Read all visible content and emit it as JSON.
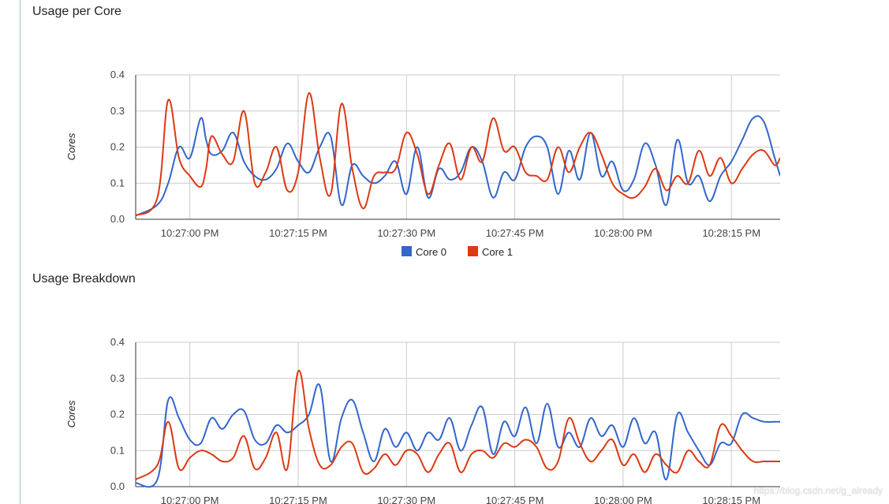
{
  "colors": {
    "core0": "#3366cc",
    "core1": "#dc3912",
    "grid": "#cccccc",
    "axis": "#333333"
  },
  "watermark": "https://blog.csdn.net/g_already",
  "chart_data": [
    {
      "type": "line",
      "title": "Usage per Core",
      "ylabel": "Cores",
      "ylim": [
        0,
        0.4
      ],
      "yticks": [
        "0.0",
        "0.1",
        "0.2",
        "0.3",
        "0.4"
      ],
      "xlim_seconds": [
        -10,
        109
      ],
      "xticks": [
        {
          "t": 0,
          "label": "10:27:00 PM"
        },
        {
          "t": 20,
          "label": "10:27:15 PM"
        },
        {
          "t": 40,
          "label": "10:27:30 PM"
        },
        {
          "t": 60,
          "label": "10:27:45 PM"
        },
        {
          "t": 80,
          "label": "10:28:00 PM"
        },
        {
          "t": 100,
          "label": "10:28:15 PM"
        }
      ],
      "legend": "bottom",
      "series": [
        {
          "name": "Core 0",
          "color": "#3366cc",
          "x": [
            -10,
            -6,
            -4,
            -2,
            0,
            2,
            3,
            4,
            6,
            8,
            10,
            12,
            14,
            16,
            18,
            20,
            22,
            24,
            26,
            28,
            30,
            32,
            34,
            36,
            38,
            40,
            42,
            44,
            46,
            48,
            50,
            52,
            54,
            56,
            58,
            60,
            62,
            64,
            66,
            68,
            70,
            72,
            74,
            76,
            78,
            80,
            82,
            84,
            86,
            88,
            90,
            92,
            94,
            96,
            98,
            100,
            102,
            104,
            106,
            108,
            109
          ],
          "y": [
            0.01,
            0.04,
            0.1,
            0.2,
            0.17,
            0.28,
            0.22,
            0.18,
            0.19,
            0.24,
            0.16,
            0.12,
            0.11,
            0.14,
            0.21,
            0.16,
            0.13,
            0.2,
            0.23,
            0.04,
            0.15,
            0.12,
            0.1,
            0.12,
            0.16,
            0.07,
            0.2,
            0.06,
            0.14,
            0.11,
            0.13,
            0.2,
            0.16,
            0.06,
            0.13,
            0.11,
            0.2,
            0.23,
            0.2,
            0.07,
            0.19,
            0.11,
            0.24,
            0.12,
            0.16,
            0.08,
            0.11,
            0.21,
            0.15,
            0.04,
            0.22,
            0.1,
            0.12,
            0.05,
            0.12,
            0.16,
            0.22,
            0.28,
            0.27,
            0.17,
            0.12
          ]
        },
        {
          "name": "Core 1",
          "color": "#dc3912",
          "x": [
            -10,
            -6,
            -4,
            -2,
            0,
            2,
            3,
            4,
            6,
            8,
            10,
            12,
            14,
            16,
            18,
            20,
            22,
            24,
            26,
            28,
            30,
            32,
            34,
            36,
            38,
            40,
            42,
            44,
            46,
            48,
            50,
            52,
            54,
            56,
            58,
            60,
            62,
            64,
            66,
            68,
            70,
            72,
            74,
            76,
            78,
            80,
            82,
            84,
            86,
            88,
            90,
            92,
            94,
            96,
            98,
            100,
            102,
            104,
            106,
            108,
            109
          ],
          "y": [
            0.01,
            0.06,
            0.33,
            0.17,
            0.12,
            0.09,
            0.14,
            0.23,
            0.18,
            0.16,
            0.3,
            0.1,
            0.13,
            0.2,
            0.08,
            0.13,
            0.35,
            0.17,
            0.07,
            0.32,
            0.14,
            0.03,
            0.12,
            0.13,
            0.14,
            0.24,
            0.18,
            0.07,
            0.15,
            0.21,
            0.11,
            0.2,
            0.16,
            0.28,
            0.19,
            0.2,
            0.13,
            0.12,
            0.11,
            0.2,
            0.13,
            0.2,
            0.24,
            0.18,
            0.1,
            0.07,
            0.06,
            0.09,
            0.14,
            0.08,
            0.12,
            0.1,
            0.19,
            0.12,
            0.17,
            0.1,
            0.14,
            0.18,
            0.19,
            0.15,
            0.17
          ]
        }
      ]
    },
    {
      "type": "line",
      "title": "Usage Breakdown",
      "ylabel": "Cores",
      "ylim": [
        0,
        0.4
      ],
      "yticks": [
        "0.0",
        "0.1",
        "0.2",
        "0.3",
        "0.4"
      ],
      "xlim_seconds": [
        -10,
        109
      ],
      "xticks": [
        {
          "t": 0,
          "label": "10:27:00 PM"
        },
        {
          "t": 20,
          "label": "10:27:15 PM"
        },
        {
          "t": 40,
          "label": "10:27:30 PM"
        },
        {
          "t": 60,
          "label": "10:27:45 PM"
        },
        {
          "t": 80,
          "label": "10:28:00 PM"
        },
        {
          "t": 100,
          "label": "10:28:15 PM"
        }
      ],
      "legend": "none",
      "series": [
        {
          "color": "#3366cc",
          "x": [
            -10,
            -6,
            -4,
            -2,
            0,
            2,
            4,
            6,
            8,
            10,
            12,
            14,
            16,
            18,
            20,
            22,
            24,
            26,
            28,
            30,
            32,
            34,
            36,
            38,
            40,
            42,
            44,
            46,
            48,
            50,
            52,
            54,
            56,
            58,
            60,
            62,
            64,
            66,
            68,
            70,
            72,
            74,
            76,
            78,
            80,
            82,
            84,
            86,
            88,
            90,
            92,
            94,
            96,
            98,
            100,
            102,
            104,
            106,
            108,
            109
          ],
          "y": [
            0.01,
            0.02,
            0.24,
            0.19,
            0.13,
            0.12,
            0.19,
            0.16,
            0.2,
            0.21,
            0.13,
            0.12,
            0.17,
            0.15,
            0.17,
            0.2,
            0.28,
            0.07,
            0.19,
            0.24,
            0.15,
            0.07,
            0.16,
            0.11,
            0.15,
            0.1,
            0.15,
            0.13,
            0.19,
            0.1,
            0.17,
            0.22,
            0.09,
            0.18,
            0.14,
            0.22,
            0.12,
            0.23,
            0.11,
            0.15,
            0.11,
            0.19,
            0.14,
            0.17,
            0.11,
            0.19,
            0.12,
            0.15,
            0.02,
            0.2,
            0.15,
            0.1,
            0.06,
            0.12,
            0.12,
            0.2,
            0.19,
            0.18,
            0.18,
            0.18
          ]
        },
        {
          "color": "#dc3912",
          "x": [
            -10,
            -6,
            -4,
            -2,
            0,
            2,
            4,
            6,
            8,
            10,
            12,
            14,
            16,
            18,
            20,
            22,
            24,
            26,
            28,
            30,
            32,
            34,
            36,
            38,
            40,
            42,
            44,
            46,
            48,
            50,
            52,
            54,
            56,
            58,
            60,
            62,
            64,
            66,
            68,
            70,
            72,
            74,
            76,
            78,
            80,
            82,
            84,
            86,
            88,
            90,
            92,
            94,
            96,
            98,
            100,
            102,
            104,
            106,
            108,
            109
          ],
          "y": [
            0.02,
            0.06,
            0.18,
            0.05,
            0.08,
            0.1,
            0.09,
            0.07,
            0.08,
            0.14,
            0.05,
            0.08,
            0.15,
            0.05,
            0.32,
            0.16,
            0.06,
            0.06,
            0.11,
            0.12,
            0.04,
            0.05,
            0.09,
            0.06,
            0.1,
            0.09,
            0.04,
            0.09,
            0.12,
            0.04,
            0.09,
            0.1,
            0.08,
            0.12,
            0.11,
            0.13,
            0.11,
            0.05,
            0.07,
            0.19,
            0.12,
            0.07,
            0.1,
            0.13,
            0.06,
            0.09,
            0.04,
            0.09,
            0.06,
            0.04,
            0.1,
            0.07,
            0.06,
            0.17,
            0.14,
            0.1,
            0.07,
            0.07,
            0.07,
            0.07
          ]
        }
      ]
    }
  ]
}
